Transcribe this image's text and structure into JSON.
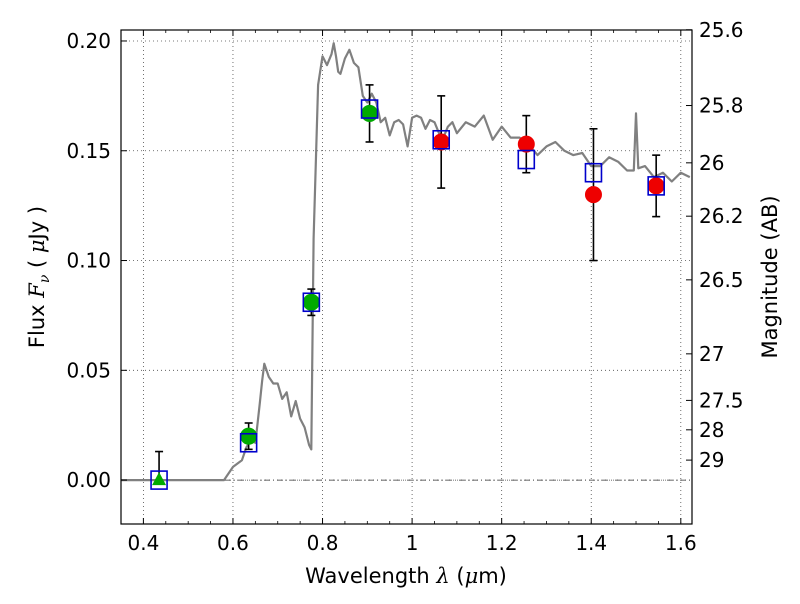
{
  "chart_data": {
    "type": "scatter",
    "xlabel": "Wavelength  λ (μm)",
    "ylabel": "Flux  F_ν  ( μJy )",
    "ylabel_right": "Magnitude (AB)",
    "xlim": [
      0.35,
      1.625
    ],
    "ylim": [
      -0.02,
      0.205
    ],
    "grid": true,
    "x_ticks": [
      0.4,
      0.6,
      0.8,
      1.0,
      1.2,
      1.4,
      1.6
    ],
    "x_tick_labels": [
      "0.4",
      "0.6",
      "0.8",
      "1",
      "1.2",
      "1.4",
      "1.6"
    ],
    "y_ticks": [
      0.0,
      0.05,
      0.1,
      0.15,
      0.2
    ],
    "y_tick_labels": [
      "0.00",
      "0.05",
      "0.10",
      "0.15",
      "0.20"
    ],
    "right_ticks": [
      {
        "label": "25.6",
        "flux": 0.2051
      },
      {
        "label": "25.8",
        "flux": 0.1706
      },
      {
        "label": "26",
        "flux": 0.1445
      },
      {
        "label": "26.2",
        "flux": 0.1202
      },
      {
        "label": "26.5",
        "flux": 0.0912
      },
      {
        "label": "27",
        "flux": 0.0575
      },
      {
        "label": "27.5",
        "flux": 0.0363
      },
      {
        "label": "28",
        "flux": 0.0229
      },
      {
        "label": "29",
        "flux": 0.0091
      }
    ],
    "series": [
      {
        "kind": "model_spectrum",
        "color": "#808080",
        "x": [
          0.35,
          0.58,
          0.6,
          0.62,
          0.63,
          0.64,
          0.65,
          0.66,
          0.665,
          0.67,
          0.68,
          0.69,
          0.7,
          0.71,
          0.72,
          0.73,
          0.74,
          0.75,
          0.76,
          0.77,
          0.775,
          0.78,
          0.79,
          0.8,
          0.81,
          0.82,
          0.825,
          0.83,
          0.835,
          0.84,
          0.85,
          0.86,
          0.87,
          0.88,
          0.89,
          0.9,
          0.91,
          0.92,
          0.93,
          0.94,
          0.95,
          0.96,
          0.97,
          0.98,
          0.99,
          1.0,
          1.01,
          1.02,
          1.03,
          1.04,
          1.05,
          1.06,
          1.07,
          1.08,
          1.09,
          1.1,
          1.12,
          1.14,
          1.16,
          1.18,
          1.2,
          1.22,
          1.24,
          1.26,
          1.28,
          1.3,
          1.32,
          1.34,
          1.36,
          1.38,
          1.4,
          1.42,
          1.44,
          1.46,
          1.48,
          1.495,
          1.5,
          1.505,
          1.52,
          1.54,
          1.56,
          1.58,
          1.6,
          1.62
        ],
        "y": [
          0.0,
          0.0,
          0.006,
          0.009,
          0.015,
          0.018,
          0.017,
          0.035,
          0.045,
          0.053,
          0.047,
          0.044,
          0.044,
          0.037,
          0.04,
          0.029,
          0.036,
          0.028,
          0.024,
          0.016,
          0.014,
          0.11,
          0.18,
          0.193,
          0.189,
          0.194,
          0.199,
          0.193,
          0.186,
          0.185,
          0.192,
          0.196,
          0.19,
          0.188,
          0.175,
          0.172,
          0.176,
          0.172,
          0.163,
          0.165,
          0.157,
          0.163,
          0.164,
          0.162,
          0.152,
          0.165,
          0.166,
          0.165,
          0.16,
          0.164,
          0.163,
          0.158,
          0.156,
          0.161,
          0.163,
          0.158,
          0.163,
          0.161,
          0.166,
          0.155,
          0.161,
          0.156,
          0.156,
          0.153,
          0.148,
          0.152,
          0.154,
          0.15,
          0.148,
          0.149,
          0.143,
          0.143,
          0.147,
          0.145,
          0.141,
          0.141,
          0.167,
          0.142,
          0.143,
          0.138,
          0.14,
          0.136,
          0.14,
          0.138
        ]
      },
      {
        "kind": "model_photometry",
        "marker": "open-square",
        "color": "#0000cc",
        "x": [
          0.435,
          0.635,
          0.775,
          0.905,
          1.065,
          1.255,
          1.405,
          1.545
        ],
        "y": [
          0.0,
          0.017,
          0.081,
          0.169,
          0.155,
          0.146,
          0.14,
          0.134
        ]
      },
      {
        "kind": "observed",
        "marker": "filled-circle",
        "color": "#00aa00",
        "x": [
          0.635,
          0.775,
          0.905
        ],
        "y": [
          0.02,
          0.081,
          0.167
        ],
        "yerr": [
          0.006,
          0.006,
          0.013
        ]
      },
      {
        "kind": "observed_upper_limit",
        "marker": "filled-triangle",
        "color": "#00aa00",
        "x": [
          0.435
        ],
        "y": [
          0.0
        ],
        "yerr_up": [
          0.013
        ]
      },
      {
        "kind": "observed",
        "marker": "filled-circle",
        "color": "#ee0000",
        "x": [
          1.065,
          1.255,
          1.405,
          1.545
        ],
        "y": [
          0.154,
          0.153,
          0.13,
          0.134
        ],
        "yerr": [
          0.021,
          0.013,
          0.03,
          0.014
        ]
      }
    ]
  }
}
